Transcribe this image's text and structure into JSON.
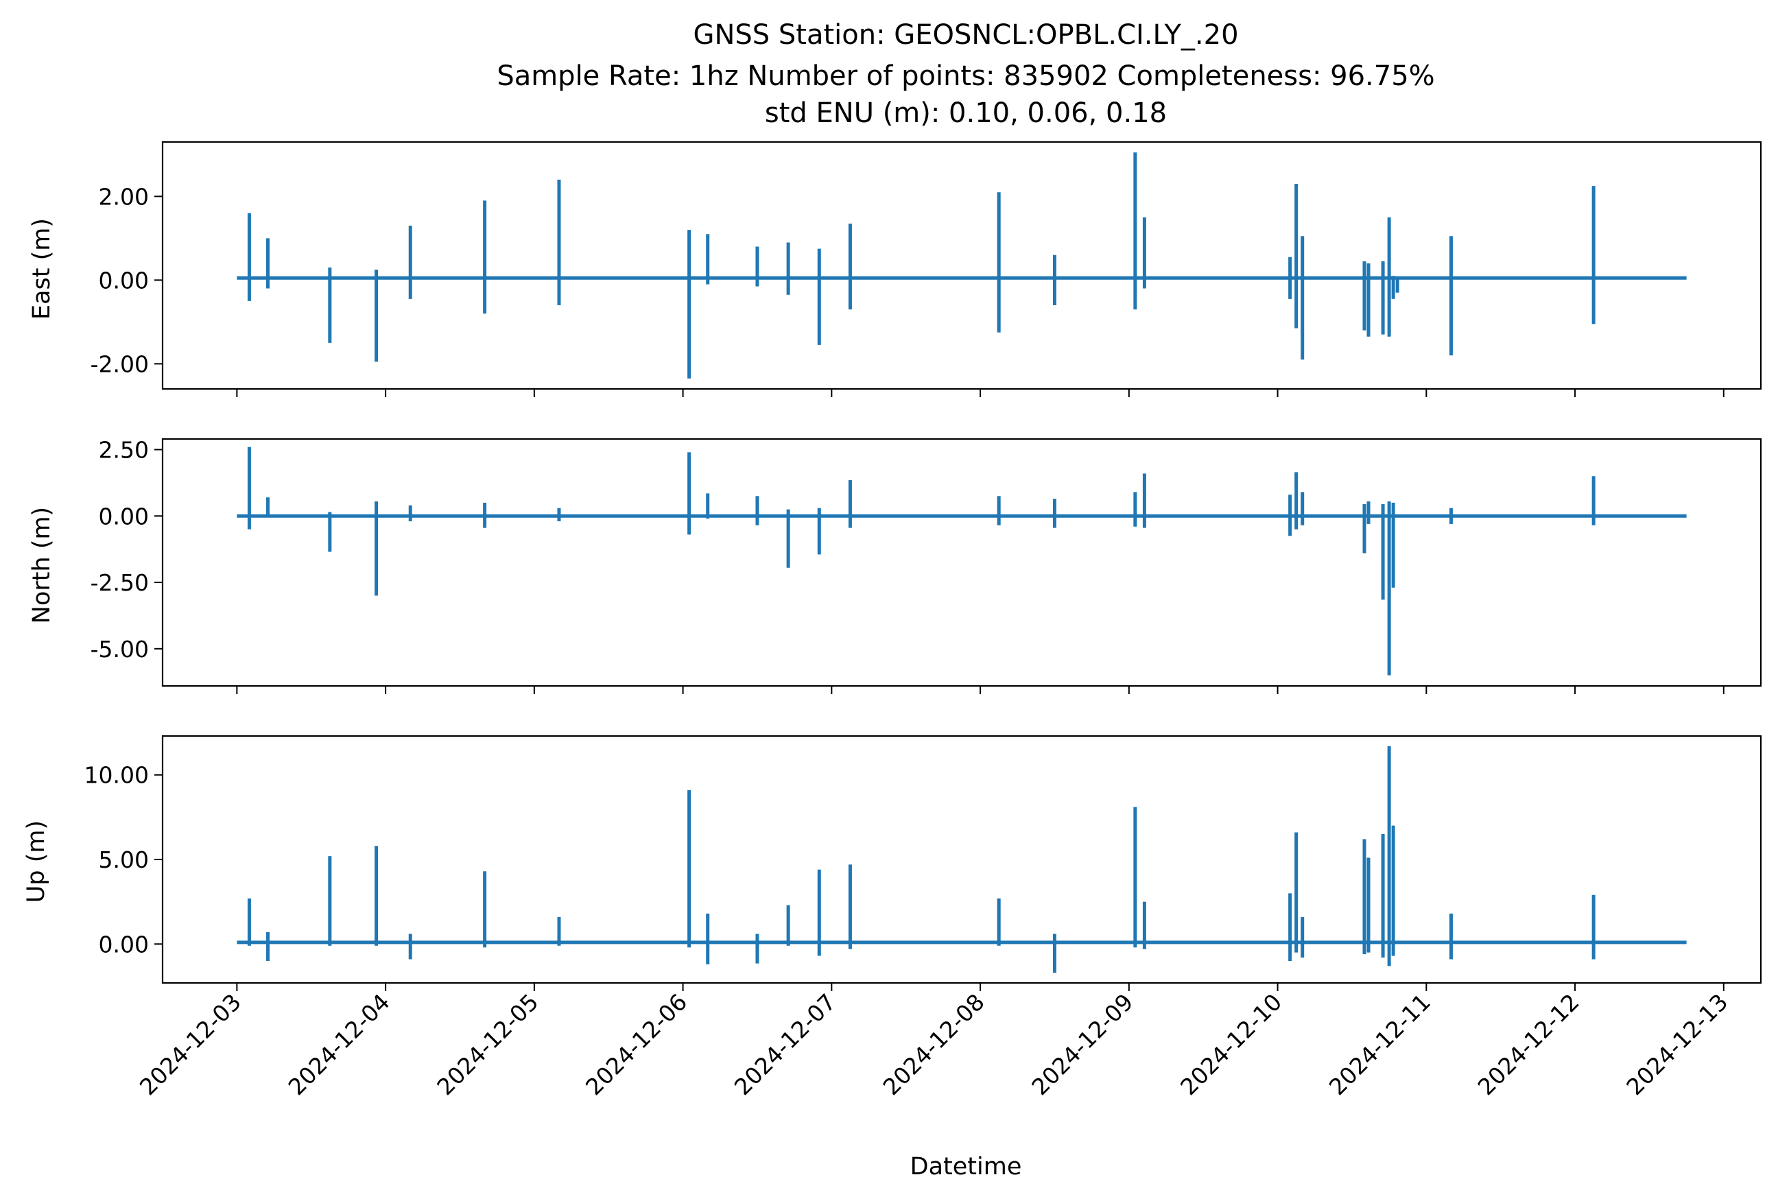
{
  "figure": {
    "title_lines": [
      "GNSS Station: GEOSNCL:OPBL.CI.LY_.20",
      "Sample Rate: 1hz   Number of points: 835902    Completeness:  96.75%",
      "std ENU (m):  0.10, 0.06, 0.18"
    ],
    "xlabel": "Datetime",
    "x_tick_labels": [
      "2024-12-03",
      "2024-12-04",
      "2024-12-05",
      "2024-12-06",
      "2024-12-07",
      "2024-12-08",
      "2024-12-09",
      "2024-12-10",
      "2024-12-11",
      "2024-12-12",
      "2024-12-13"
    ],
    "line_color": "#1f77b4"
  },
  "chart_data": [
    {
      "type": "line",
      "ylabel": "East (m)",
      "x_range": [
        "2024-12-02T12:00",
        "2024-12-13T06:00"
      ],
      "ylim": [
        -2.6,
        3.3
      ],
      "y_ticks": [
        2.0,
        0.0,
        -2.0
      ],
      "y_tick_labels": [
        "2.00",
        "0.00",
        "-2.00"
      ],
      "baseline": 0.05,
      "spikes": [
        {
          "t": "2024-12-03T02:00",
          "lo": -0.5,
          "hi": 1.6
        },
        {
          "t": "2024-12-03T05:00",
          "lo": -0.2,
          "hi": 1.0
        },
        {
          "t": "2024-12-03T15:00",
          "lo": -1.5,
          "hi": 0.3
        },
        {
          "t": "2024-12-03T22:30",
          "lo": -1.95,
          "hi": 0.25
        },
        {
          "t": "2024-12-04T04:00",
          "lo": -0.45,
          "hi": 1.3
        },
        {
          "t": "2024-12-04T16:00",
          "lo": -0.8,
          "hi": 1.9
        },
        {
          "t": "2024-12-05T04:00",
          "lo": -0.6,
          "hi": 2.4
        },
        {
          "t": "2024-12-06T01:00",
          "lo": -2.35,
          "hi": 1.2
        },
        {
          "t": "2024-12-06T04:00",
          "lo": -0.1,
          "hi": 1.1
        },
        {
          "t": "2024-12-06T12:00",
          "lo": -0.15,
          "hi": 0.8
        },
        {
          "t": "2024-12-06T17:00",
          "lo": -0.35,
          "hi": 0.9
        },
        {
          "t": "2024-12-06T22:00",
          "lo": -1.55,
          "hi": 0.75
        },
        {
          "t": "2024-12-07T03:00",
          "lo": -0.7,
          "hi": 1.35
        },
        {
          "t": "2024-12-08T03:00",
          "lo": -1.25,
          "hi": 2.1
        },
        {
          "t": "2024-12-08T12:00",
          "lo": -0.6,
          "hi": 0.6
        },
        {
          "t": "2024-12-09T01:00",
          "lo": -0.7,
          "hi": 3.05
        },
        {
          "t": "2024-12-09T02:30",
          "lo": -0.2,
          "hi": 1.5
        },
        {
          "t": "2024-12-10T02:00",
          "lo": -0.45,
          "hi": 0.55
        },
        {
          "t": "2024-12-10T03:00",
          "lo": -1.15,
          "hi": 2.3
        },
        {
          "t": "2024-12-10T04:00",
          "lo": -1.9,
          "hi": 1.05
        },
        {
          "t": "2024-12-10T14:00",
          "lo": -1.2,
          "hi": 0.45
        },
        {
          "t": "2024-12-10T14:40",
          "lo": -1.35,
          "hi": 0.4
        },
        {
          "t": "2024-12-10T17:00",
          "lo": -1.3,
          "hi": 0.45
        },
        {
          "t": "2024-12-10T18:00",
          "lo": -1.35,
          "hi": 1.5
        },
        {
          "t": "2024-12-10T18:40",
          "lo": -0.45,
          "hi": 0.1
        },
        {
          "t": "2024-12-10T19:20",
          "lo": -0.3,
          "hi": 0.05
        },
        {
          "t": "2024-12-11T04:00",
          "lo": -1.8,
          "hi": 1.05
        },
        {
          "t": "2024-12-12T03:00",
          "lo": -1.05,
          "hi": 2.25
        }
      ]
    },
    {
      "type": "line",
      "ylabel": "North (m)",
      "x_range": [
        "2024-12-02T12:00",
        "2024-12-13T06:00"
      ],
      "ylim": [
        -6.4,
        2.9
      ],
      "y_ticks": [
        2.5,
        0.0,
        -2.5,
        -5.0
      ],
      "y_tick_labels": [
        "2.50",
        "0.00",
        "-2.50",
        "-5.00"
      ],
      "baseline": 0.0,
      "spikes": [
        {
          "t": "2024-12-03T02:00",
          "lo": -0.5,
          "hi": 2.6
        },
        {
          "t": "2024-12-03T05:00",
          "lo": -0.05,
          "hi": 0.7
        },
        {
          "t": "2024-12-03T15:00",
          "lo": -1.35,
          "hi": 0.15
        },
        {
          "t": "2024-12-03T22:30",
          "lo": -3.0,
          "hi": 0.55
        },
        {
          "t": "2024-12-04T04:00",
          "lo": -0.2,
          "hi": 0.4
        },
        {
          "t": "2024-12-04T16:00",
          "lo": -0.45,
          "hi": 0.5
        },
        {
          "t": "2024-12-05T04:00",
          "lo": -0.2,
          "hi": 0.3
        },
        {
          "t": "2024-12-06T01:00",
          "lo": -0.7,
          "hi": 2.4
        },
        {
          "t": "2024-12-06T04:00",
          "lo": -0.1,
          "hi": 0.85
        },
        {
          "t": "2024-12-06T12:00",
          "lo": -0.35,
          "hi": 0.75
        },
        {
          "t": "2024-12-06T17:00",
          "lo": -1.95,
          "hi": 0.25
        },
        {
          "t": "2024-12-06T22:00",
          "lo": -1.45,
          "hi": 0.3
        },
        {
          "t": "2024-12-07T03:00",
          "lo": -0.45,
          "hi": 1.35
        },
        {
          "t": "2024-12-08T03:00",
          "lo": -0.35,
          "hi": 0.75
        },
        {
          "t": "2024-12-08T12:00",
          "lo": -0.45,
          "hi": 0.65
        },
        {
          "t": "2024-12-09T01:00",
          "lo": -0.4,
          "hi": 0.9
        },
        {
          "t": "2024-12-09T02:30",
          "lo": -0.45,
          "hi": 1.6
        },
        {
          "t": "2024-12-10T02:00",
          "lo": -0.75,
          "hi": 0.8
        },
        {
          "t": "2024-12-10T03:00",
          "lo": -0.5,
          "hi": 1.65
        },
        {
          "t": "2024-12-10T04:00",
          "lo": -0.35,
          "hi": 0.9
        },
        {
          "t": "2024-12-10T14:00",
          "lo": -1.4,
          "hi": 0.45
        },
        {
          "t": "2024-12-10T14:40",
          "lo": -0.3,
          "hi": 0.55
        },
        {
          "t": "2024-12-10T17:00",
          "lo": -3.15,
          "hi": 0.45
        },
        {
          "t": "2024-12-10T18:00",
          "lo": -6.0,
          "hi": 0.55
        },
        {
          "t": "2024-12-10T18:40",
          "lo": -2.7,
          "hi": 0.5
        },
        {
          "t": "2024-12-11T04:00",
          "lo": -0.3,
          "hi": 0.3
        },
        {
          "t": "2024-12-12T03:00",
          "lo": -0.35,
          "hi": 1.5
        }
      ]
    },
    {
      "type": "line",
      "ylabel": "Up (m)",
      "x_range": [
        "2024-12-02T12:00",
        "2024-12-13T06:00"
      ],
      "ylim": [
        -2.3,
        12.3
      ],
      "y_ticks": [
        10.0,
        5.0,
        0.0
      ],
      "y_tick_labels": [
        "10.00",
        "5.00",
        "0.00"
      ],
      "baseline": 0.1,
      "spikes": [
        {
          "t": "2024-12-03T02:00",
          "lo": -0.1,
          "hi": 2.7
        },
        {
          "t": "2024-12-03T05:00",
          "lo": -1.0,
          "hi": 0.7
        },
        {
          "t": "2024-12-03T15:00",
          "lo": -0.1,
          "hi": 5.2
        },
        {
          "t": "2024-12-03T22:30",
          "lo": -0.1,
          "hi": 5.8
        },
        {
          "t": "2024-12-04T04:00",
          "lo": -0.9,
          "hi": 0.6
        },
        {
          "t": "2024-12-04T16:00",
          "lo": -0.2,
          "hi": 4.3
        },
        {
          "t": "2024-12-05T04:00",
          "lo": -0.1,
          "hi": 1.6
        },
        {
          "t": "2024-12-06T01:00",
          "lo": -0.2,
          "hi": 9.1
        },
        {
          "t": "2024-12-06T04:00",
          "lo": -1.2,
          "hi": 1.8
        },
        {
          "t": "2024-12-06T12:00",
          "lo": -1.15,
          "hi": 0.6
        },
        {
          "t": "2024-12-06T17:00",
          "lo": -0.1,
          "hi": 2.3
        },
        {
          "t": "2024-12-06T22:00",
          "lo": -0.7,
          "hi": 4.4
        },
        {
          "t": "2024-12-07T03:00",
          "lo": -0.3,
          "hi": 4.7
        },
        {
          "t": "2024-12-08T03:00",
          "lo": -0.1,
          "hi": 2.7
        },
        {
          "t": "2024-12-08T12:00",
          "lo": -1.7,
          "hi": 0.6
        },
        {
          "t": "2024-12-09T01:00",
          "lo": -0.2,
          "hi": 8.1
        },
        {
          "t": "2024-12-09T02:30",
          "lo": -0.3,
          "hi": 2.5
        },
        {
          "t": "2024-12-10T02:00",
          "lo": -1.0,
          "hi": 3.0
        },
        {
          "t": "2024-12-10T03:00",
          "lo": -0.5,
          "hi": 6.6
        },
        {
          "t": "2024-12-10T04:00",
          "lo": -0.8,
          "hi": 1.6
        },
        {
          "t": "2024-12-10T14:00",
          "lo": -0.6,
          "hi": 6.2
        },
        {
          "t": "2024-12-10T14:40",
          "lo": -0.5,
          "hi": 5.1
        },
        {
          "t": "2024-12-10T17:00",
          "lo": -0.8,
          "hi": 6.5
        },
        {
          "t": "2024-12-10T18:00",
          "lo": -1.3,
          "hi": 11.7
        },
        {
          "t": "2024-12-10T18:40",
          "lo": -0.7,
          "hi": 7.0
        },
        {
          "t": "2024-12-11T04:00",
          "lo": -0.9,
          "hi": 1.8
        },
        {
          "t": "2024-12-12T03:00",
          "lo": -0.9,
          "hi": 2.9
        }
      ]
    }
  ]
}
